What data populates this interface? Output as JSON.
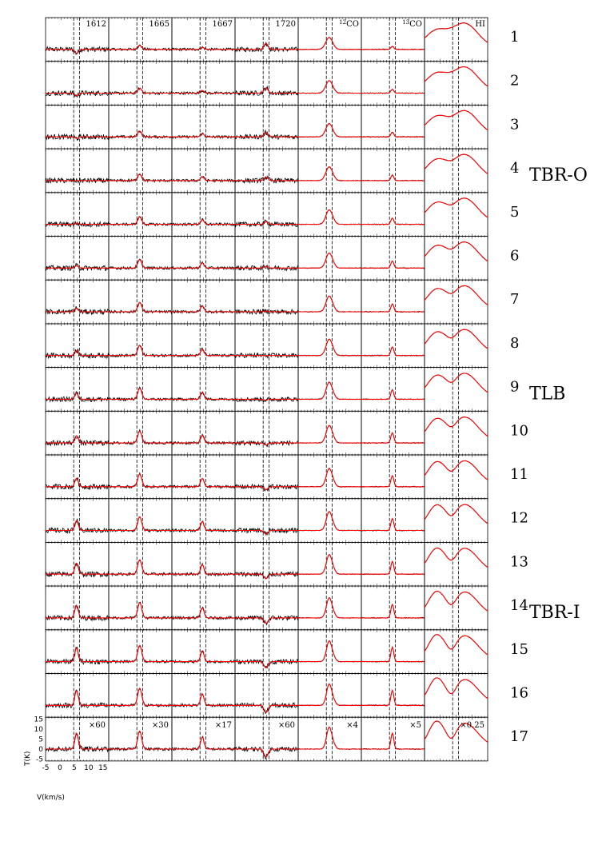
{
  "chart_data": {
    "type": "line",
    "panel_labels": [
      "1612",
      "1665",
      "1667",
      "1720",
      "12CO",
      "13CO",
      "HI"
    ],
    "scale_factors": [
      "×60",
      "×30",
      "×17",
      "×60",
      "×4",
      "×5",
      "×0.25"
    ],
    "rows": [
      "1",
      "2",
      "3",
      "4",
      "5",
      "6",
      "7",
      "8",
      "9",
      "10",
      "11",
      "12",
      "13",
      "14",
      "15",
      "16",
      "17"
    ],
    "region_labels": [
      {
        "row_index": 3,
        "text": "TBR-O"
      },
      {
        "row_index": 8,
        "text": "TLB"
      },
      {
        "row_index": 13,
        "text": "TBR-I"
      }
    ],
    "xlabel": "V(km/s)",
    "ylabel": "T(K)",
    "x_ticks": [
      "-5",
      "0",
      "5",
      "10",
      "15"
    ],
    "y_ticks": [
      "15",
      "10",
      "5",
      "0",
      "-5"
    ],
    "xlim": [
      -5,
      17
    ],
    "ylim": [
      -6,
      16
    ],
    "velocity_markers": [
      4.8,
      6.8
    ],
    "observed_color": "#000000",
    "model_color": "#ff0000",
    "line_peak_amplitudes_bottom_row": [
      8,
      9,
      6,
      -4,
      11,
      8,
      12
    ]
  },
  "axis": {
    "ylabel": "T(K)",
    "xlabel": "V(km/s)",
    "x_ticks": [
      "-5",
      "0",
      "5",
      "10",
      "15"
    ],
    "y_ticks": [
      "15",
      "10",
      "5",
      "0",
      "-5"
    ]
  }
}
